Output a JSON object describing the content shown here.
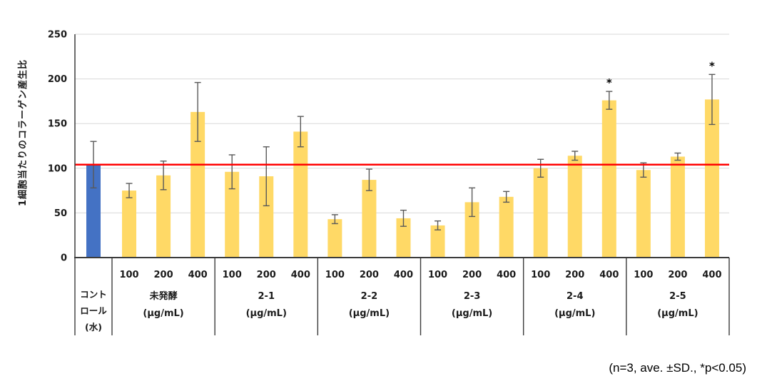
{
  "chart_data": {
    "type": "bar",
    "title": "",
    "ylabel": "1細胞当たりのコラーゲン産生比",
    "xlabel": "",
    "ylim": [
      0,
      250
    ],
    "yticks": [
      0,
      50,
      100,
      150,
      200,
      250
    ],
    "grid": "horizontal",
    "legend": "none",
    "annotation": "(n=3, ave. ±SD., *p<0.05)",
    "significance_marker": "*",
    "reference_line": {
      "value": 104,
      "color": "#FF0000"
    },
    "unit_label": "(μg/mL)",
    "colors": {
      "control_bar": "#4472C4",
      "sample_bar": "#FFD966",
      "error_bar": "#595959",
      "grid_line": "#D9D9D9",
      "axis_line": "#3B3B3B",
      "reference_line": "#FF0000",
      "text": "#1A1A1A"
    },
    "groups": [
      {
        "is_control": true,
        "label_lines": [
          "コント",
          "ロール",
          "(水)"
        ],
        "bars": [
          {
            "dose_label": "",
            "value": 104,
            "error": 26,
            "significant": false
          }
        ]
      },
      {
        "is_control": false,
        "label": "未発酵",
        "unit": "(μg/mL)",
        "bars": [
          {
            "dose_label": "100",
            "value": 75,
            "error": 8,
            "significant": false
          },
          {
            "dose_label": "200",
            "value": 92,
            "error": 16,
            "significant": false
          },
          {
            "dose_label": "400",
            "value": 163,
            "error": 33,
            "significant": false
          }
        ]
      },
      {
        "is_control": false,
        "label": "2-1",
        "unit": "(μg/mL)",
        "bars": [
          {
            "dose_label": "100",
            "value": 96,
            "error": 19,
            "significant": false
          },
          {
            "dose_label": "200",
            "value": 91,
            "error": 33,
            "significant": false
          },
          {
            "dose_label": "400",
            "value": 141,
            "error": 17,
            "significant": false
          }
        ]
      },
      {
        "is_control": false,
        "label": "2-2",
        "unit": "(μg/mL)",
        "bars": [
          {
            "dose_label": "100",
            "value": 43,
            "error": 5,
            "significant": false
          },
          {
            "dose_label": "200",
            "value": 87,
            "error": 12,
            "significant": false
          },
          {
            "dose_label": "400",
            "value": 44,
            "error": 9,
            "significant": false
          }
        ]
      },
      {
        "is_control": false,
        "label": "2-3",
        "unit": "(μg/mL)",
        "bars": [
          {
            "dose_label": "100",
            "value": 36,
            "error": 5,
            "significant": false
          },
          {
            "dose_label": "200",
            "value": 62,
            "error": 16,
            "significant": false
          },
          {
            "dose_label": "400",
            "value": 68,
            "error": 6,
            "significant": false
          }
        ]
      },
      {
        "is_control": false,
        "label": "2-4",
        "unit": "(μg/mL)",
        "bars": [
          {
            "dose_label": "100",
            "value": 100,
            "error": 10,
            "significant": false
          },
          {
            "dose_label": "200",
            "value": 114,
            "error": 5,
            "significant": false
          },
          {
            "dose_label": "400",
            "value": 176,
            "error": 10,
            "significant": true
          }
        ]
      },
      {
        "is_control": false,
        "label": "2-5",
        "unit": "(μg/mL)",
        "bars": [
          {
            "dose_label": "100",
            "value": 98,
            "error": 8,
            "significant": false
          },
          {
            "dose_label": "200",
            "value": 113,
            "error": 4,
            "significant": false
          },
          {
            "dose_label": "400",
            "value": 177,
            "error": 28,
            "significant": true
          }
        ]
      }
    ]
  }
}
